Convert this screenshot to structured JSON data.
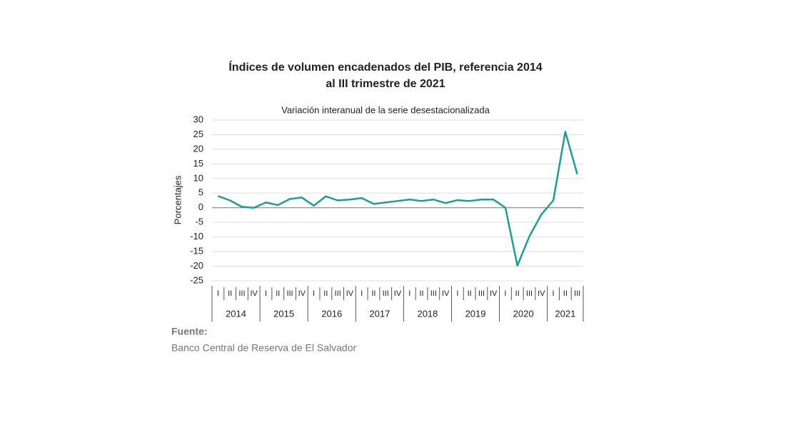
{
  "chart_data": {
    "type": "line",
    "title": [
      "Índices de volumen encadenados del PIB, referencia 2014",
      "al III trimestre de 2021"
    ],
    "subtitle": "Variación interanual de la serie desestacionalizada",
    "y_label": "Porcentajes",
    "categories": [
      "I",
      "II",
      "III",
      "IV",
      "I",
      "II",
      "III",
      "IV",
      "I",
      "II",
      "III",
      "IV",
      "I",
      "II",
      "III",
      "IV",
      "I",
      "II",
      "III",
      "IV",
      "I",
      "II",
      "III",
      "IV",
      "I",
      "II",
      "III",
      "IV",
      "I",
      "II",
      "III"
    ],
    "groups": [
      "2014",
      "2015",
      "2016",
      "2017",
      "2018",
      "2019",
      "2020",
      "2021"
    ],
    "series": [
      {
        "name": "Variación interanual",
        "color": "#1a9e96",
        "values": [
          4.0,
          2.5,
          0.3,
          0.0,
          1.8,
          0.9,
          3.0,
          3.5,
          0.7,
          3.9,
          2.5,
          2.8,
          3.3,
          1.3,
          1.8,
          2.3,
          2.8,
          2.3,
          2.8,
          1.6,
          2.6,
          2.3,
          2.8,
          2.8,
          0.0,
          -19.8,
          -9.8,
          -2.3,
          2.5,
          26.0,
          11.5
        ]
      }
    ],
    "ylim": [
      -25,
      30
    ],
    "yticks": [
      -25,
      -20,
      -15,
      -10,
      -5,
      0,
      5,
      10,
      15,
      20,
      25,
      30
    ],
    "grid": true,
    "source_heading": "Fuente:",
    "source": "Banco Central de Reserva de El Salvador"
  }
}
